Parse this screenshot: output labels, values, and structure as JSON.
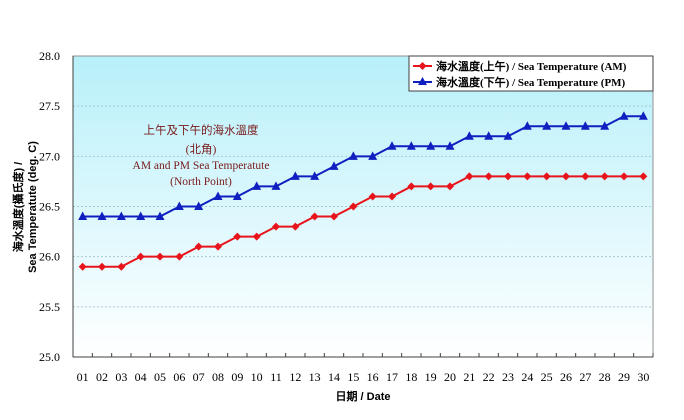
{
  "chart_data": {
    "type": "line",
    "title": "上午及下午的海水溫度 (北角) AM and PM Sea Temperatute (North Point)",
    "annotation": {
      "line1": "上午及下午的海水溫度",
      "line2": "(北角)",
      "line3": "AM and PM Sea Temperatute",
      "line4": "(North Point)"
    },
    "xlabel": "日期 / Date",
    "ylabel_line1": "海水溫度(攝氏度) /",
    "ylabel_line2": "Sea Temperatute (deg. C)",
    "ylim": [
      25.0,
      28.0
    ],
    "yticks": [
      "25.0",
      "25.5",
      "26.0",
      "26.5",
      "27.0",
      "27.5",
      "28.0"
    ],
    "grid": "horizontal dotted",
    "legend_position": "top-right",
    "categories": [
      "01",
      "02",
      "03",
      "04",
      "05",
      "06",
      "07",
      "08",
      "09",
      "10",
      "11",
      "12",
      "13",
      "14",
      "15",
      "16",
      "17",
      "18",
      "19",
      "20",
      "21",
      "22",
      "23",
      "24",
      "25",
      "26",
      "27",
      "28",
      "29",
      "30"
    ],
    "series": [
      {
        "name": "海水溫度(上午) / Sea Temperature (AM)",
        "color": "#e8141c",
        "marker": "diamond",
        "values": [
          25.9,
          25.9,
          25.9,
          26.0,
          26.0,
          26.0,
          26.1,
          26.1,
          26.2,
          26.2,
          26.3,
          26.3,
          26.4,
          26.4,
          26.5,
          26.6,
          26.6,
          26.7,
          26.7,
          26.7,
          26.8,
          26.8,
          26.8,
          26.8,
          26.8,
          26.8,
          26.8,
          26.8,
          26.8,
          26.8
        ]
      },
      {
        "name": "海水溫度(下午) / Sea Temperature (PM)",
        "color": "#1020c0",
        "marker": "triangle",
        "values": [
          26.4,
          26.4,
          26.4,
          26.4,
          26.4,
          26.5,
          26.5,
          26.6,
          26.6,
          26.7,
          26.7,
          26.8,
          26.8,
          26.9,
          27.0,
          27.0,
          27.1,
          27.1,
          27.1,
          27.1,
          27.2,
          27.2,
          27.2,
          27.3,
          27.3,
          27.3,
          27.3,
          27.3,
          27.4,
          27.4
        ]
      }
    ]
  },
  "colors": {
    "plot_bg_top": "#b8f0fa",
    "plot_bg_bottom": "#ffffff",
    "grid": "#a8c8d0",
    "axis": "#404040"
  }
}
